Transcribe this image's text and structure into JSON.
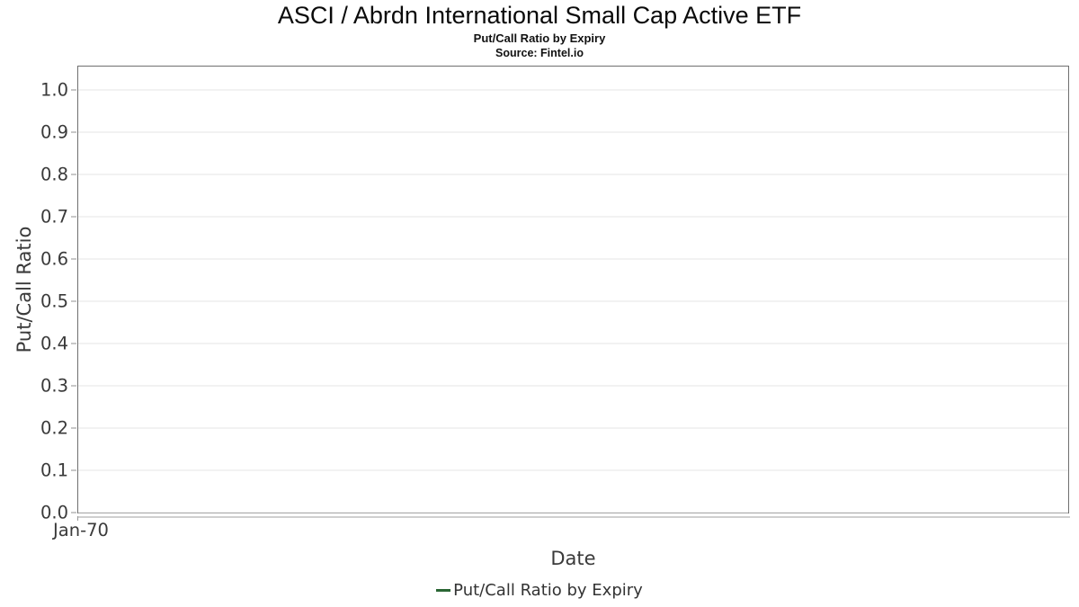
{
  "header": {
    "title": "ASCI / Abrdn International Small Cap Active ETF",
    "subtitle": "Put/Call Ratio by Expiry",
    "source": "Source: Fintel.io"
  },
  "chart_data": {
    "type": "line",
    "title": "ASCI / Abrdn International Small Cap Active ETF",
    "subtitle": "Put/Call Ratio by Expiry",
    "source": "Source: Fintel.io",
    "xlabel": "Date",
    "ylabel": "Put/Call Ratio",
    "ylim": [
      0,
      1.055
    ],
    "yticks": [
      "1.0",
      "0.9",
      "0.8",
      "0.7",
      "0.6",
      "0.5",
      "0.4",
      "0.3",
      "0.2",
      "0.1",
      "0.0"
    ],
    "xticks": [
      "Jan-70"
    ],
    "grid": "horizontal-only",
    "plot_empty": true,
    "legend": {
      "position": "bottom-center",
      "entries": [
        {
          "label": "Put/Call Ratio by Expiry",
          "color": "#2a6634",
          "marker": "line"
        }
      ]
    },
    "series": [
      {
        "name": "Put/Call Ratio by Expiry",
        "color": "#2a6634",
        "x": [],
        "values": []
      }
    ],
    "colors": {
      "plot_border": "#6f6f6f",
      "gridline": "#e5e5e5",
      "tick": "#909090",
      "axis_line": "#cfcfcf",
      "tick_label_text": "#3a3a3a",
      "title_text": "#0a0a0a",
      "legend_text": "#333333"
    }
  }
}
